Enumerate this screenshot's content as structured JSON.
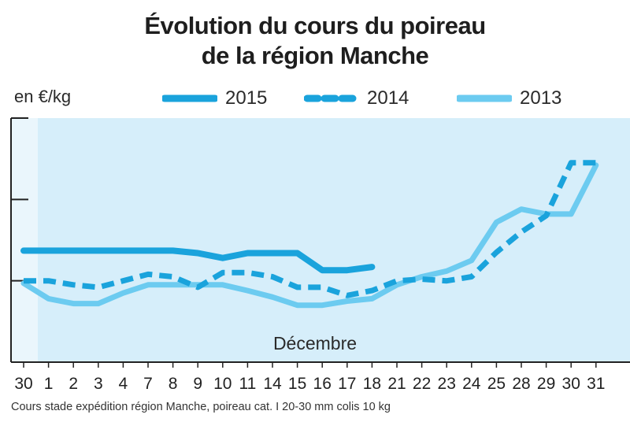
{
  "chart_data": {
    "type": "line",
    "title_lines": [
      "Évolution du cours du poireau",
      "de la région Manche"
    ],
    "ylabel": "en €/kg",
    "period_label": "Décembre",
    "categories": [
      "30",
      "1",
      "2",
      "3",
      "4",
      "7",
      "8",
      "9",
      "10",
      "11",
      "14",
      "15",
      "16",
      "17",
      "18",
      "21",
      "22",
      "23",
      "24",
      "25",
      "28",
      "29",
      "30",
      "31"
    ],
    "series": [
      {
        "name": "2015",
        "style": "solid-thick",
        "color": "#1aa3dc",
        "values": [
          2.37,
          2.37,
          2.37,
          2.37,
          2.37,
          2.37,
          2.37,
          2.34,
          2.28,
          2.34,
          2.34,
          2.34,
          2.13,
          2.13,
          2.17,
          null,
          null,
          null,
          null,
          null,
          null,
          null,
          null,
          null
        ]
      },
      {
        "name": "2014",
        "style": "dashed",
        "color": "#1aa3dc",
        "values": [
          2.0,
          2.0,
          1.95,
          1.92,
          2.0,
          2.08,
          2.05,
          1.92,
          2.1,
          2.1,
          2.05,
          1.92,
          1.92,
          1.82,
          1.88,
          2.0,
          2.02,
          2.0,
          2.05,
          2.35,
          2.6,
          2.8,
          3.45,
          3.45
        ]
      },
      {
        "name": "2013",
        "style": "solid-light",
        "color": "#6ccbf0",
        "values": [
          1.97,
          1.78,
          1.72,
          1.72,
          1.85,
          1.95,
          1.95,
          1.95,
          1.95,
          1.88,
          1.8,
          1.7,
          1.7,
          1.75,
          1.78,
          1.95,
          2.05,
          2.12,
          2.25,
          2.72,
          2.88,
          2.82,
          2.82,
          3.42
        ]
      }
    ],
    "ylim": [
      1.0,
      4.0
    ],
    "grid": false,
    "legend_position": "top"
  },
  "footnote": "Cours stade expédition région Manche, poireau cat. I 20-30 mm colis 10 kg",
  "colors": {
    "plot_background": "#d6eefa",
    "axis": "#222222",
    "line_2015": "#1aa3dc",
    "line_2014": "#1aa3dc",
    "line_2013": "#6ccbf0"
  }
}
